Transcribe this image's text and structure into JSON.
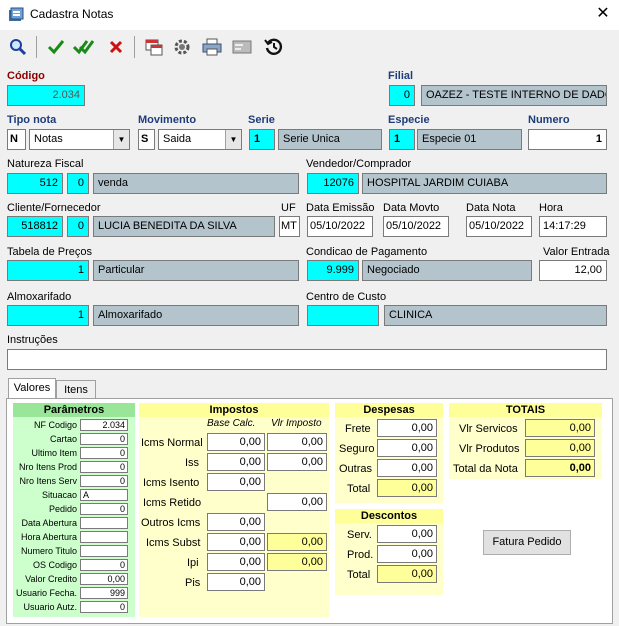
{
  "window": {
    "title": "Cadastra Notas",
    "close_label": "✕"
  },
  "toolbar": {
    "icons": [
      "search-icon",
      "check-icon",
      "check-all-icon",
      "cancel-icon",
      "window-icon",
      "gear-icon",
      "printer-icon",
      "card-icon",
      "history-icon"
    ]
  },
  "header": {
    "codigo_label": "Código",
    "codigo_value": "2.034",
    "filial_label": "Filial",
    "filial_code": "0",
    "filial_name": "OAZEZ - TESTE INTERNO DE DADOS",
    "tipo_nota_label": "Tipo nota",
    "tipo_nota_code": "N",
    "tipo_nota_value": "Notas",
    "movimento_label": "Movimento",
    "movimento_code": "S",
    "movimento_value": "Saida",
    "serie_label": "Serie",
    "serie_code": "1",
    "serie_name": "Serie Unica",
    "especie_label": "Especie",
    "especie_code": "1",
    "especie_name": "Especie 01",
    "numero_label": "Numero",
    "numero_value": "1",
    "natureza_label": "Natureza Fiscal",
    "natureza_code": "512",
    "natureza_sub": "0",
    "natureza_name": "venda",
    "vendedor_label": "Vendedor/Comprador",
    "vendedor_code": "12076",
    "vendedor_name": "HOSPITAL JARDIM CUIABA",
    "cliente_label": "Cliente/Fornecedor",
    "cliente_code": "518812",
    "cliente_sub": "0",
    "cliente_name": "LUCIA BENEDITA DA SILVA",
    "uf_label": "UF",
    "uf_value": "MT",
    "data_emissao_label": "Data Emissão",
    "data_emissao": "05/10/2022",
    "data_movto_label": "Data Movto",
    "data_movto": "05/10/2022",
    "data_nota_label": "Data Nota",
    "data_nota": "05/10/2022",
    "hora_label": "Hora",
    "hora": "14:17:29",
    "tabela_label": "Tabela de Preços",
    "tabela_code": "1",
    "tabela_name": "Particular",
    "condicao_label": "Condicao de Pagamento",
    "condicao_code": "9.999",
    "condicao_name": "Negociado",
    "valor_entrada_label": "Valor Entrada",
    "valor_entrada": "12,00",
    "almox_label": "Almoxarifado",
    "almox_code": "1",
    "almox_name": "Almoxarifado",
    "centro_label": "Centro de Custo",
    "centro_code": "",
    "centro_name": "CLINICA",
    "instrucoes_label": "Instruções",
    "instrucoes_value": ""
  },
  "tabs": [
    "Valores",
    "Itens"
  ],
  "parametros": {
    "title": "Parâmetros",
    "rows": [
      {
        "label": "NF Codigo",
        "value": "2.034"
      },
      {
        "label": "Cartao",
        "value": "0"
      },
      {
        "label": "Ultimo Item",
        "value": "0"
      },
      {
        "label": "Nro Itens Prod",
        "value": "0"
      },
      {
        "label": "Nro Itens Serv",
        "value": "0"
      },
      {
        "label": "Situacao",
        "value": "A"
      },
      {
        "label": "Pedido",
        "value": "0"
      },
      {
        "label": "Data Abertura",
        "value": ""
      },
      {
        "label": "Hora Abertura",
        "value": ""
      },
      {
        "label": "Numero Titulo",
        "value": ""
      },
      {
        "label": "OS Codigo",
        "value": "0"
      },
      {
        "label": "Valor Credito",
        "value": "0,00"
      },
      {
        "label": "Usuario Fecha.",
        "value": "999"
      },
      {
        "label": "Usuario Autz.",
        "value": "0"
      }
    ]
  },
  "impostos": {
    "title": "Impostos",
    "base_head": "Base Calc.",
    "vlr_head": "Vlr Imposto",
    "icms_normal_label": "Icms Normal",
    "icms_normal_base": "0,00",
    "icms_normal_vlr": "0,00",
    "iss_label": "Iss",
    "iss_base": "0,00",
    "iss_vlr": "0,00",
    "icms_isento_label": "Icms Isento",
    "icms_isento": "0,00",
    "icms_retido_label": "Icms Retido",
    "icms_retido": "0,00",
    "outros_icms_label": "Outros Icms",
    "outros_icms": "0,00",
    "icms_subst_label": "Icms Subst",
    "icms_subst_base": "0,00",
    "icms_subst_vlr": "0,00",
    "ipi_label": "Ipi",
    "ipi_base": "0,00",
    "ipi_vlr": "0,00",
    "pis_label": "Pis",
    "pis": "0,00"
  },
  "despesas": {
    "title": "Despesas",
    "frete_label": "Frete",
    "frete": "0,00",
    "seguro_label": "Seguro",
    "seguro": "0,00",
    "outras_label": "Outras",
    "outras": "0,00",
    "total_label": "Total",
    "total": "0,00"
  },
  "descontos": {
    "title": "Descontos",
    "serv_label": "Serv.",
    "serv": "0,00",
    "prod_label": "Prod.",
    "prod": "0,00",
    "total_label": "Total",
    "total": "0,00"
  },
  "totais": {
    "title": "TOTAIS",
    "servicos_label": "Vlr Servicos",
    "servicos": "0,00",
    "produtos_label": "Vlr Produtos",
    "produtos": "0,00",
    "nota_label": "Total da Nota",
    "nota": "0,00"
  },
  "fatura_button": "Fatura Pedido"
}
